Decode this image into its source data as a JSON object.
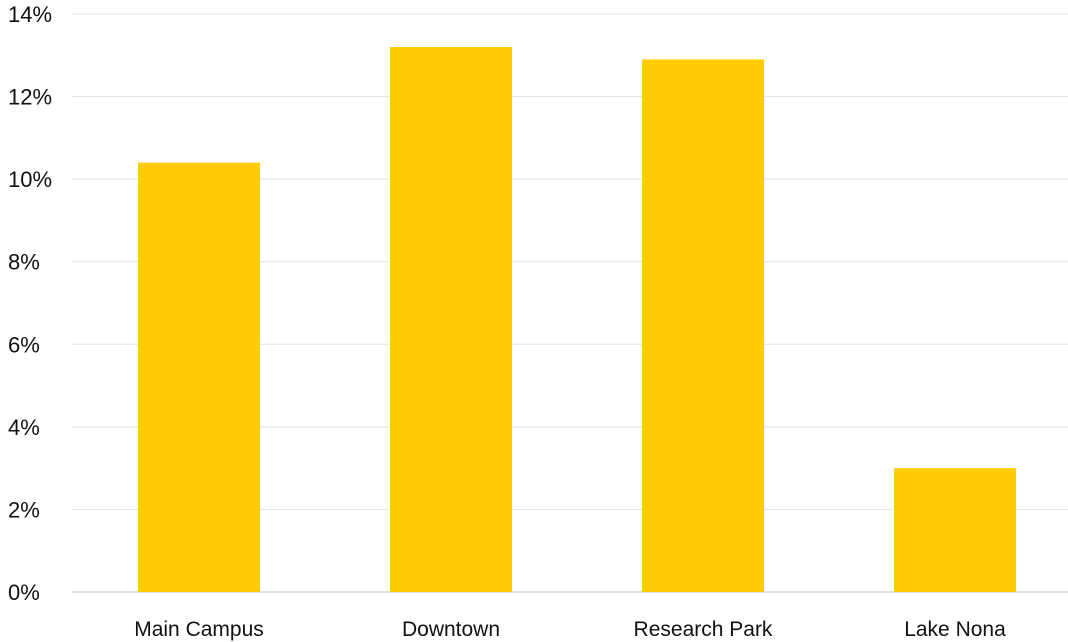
{
  "chart_data": {
    "type": "bar",
    "title": "",
    "xlabel": "",
    "ylabel": "",
    "categories": [
      "Main Campus",
      "Downtown",
      "Research Park",
      "Lake Nona"
    ],
    "values": [
      10.4,
      13.2,
      12.9,
      3.0
    ],
    "ylim": [
      0,
      14
    ],
    "yticks": [
      0,
      2,
      4,
      6,
      8,
      10,
      12,
      14
    ],
    "ytick_labels": [
      "0%",
      "2%",
      "4%",
      "6%",
      "8%",
      "10%",
      "12%",
      "14%"
    ],
    "grid": true,
    "legend": "none",
    "colors": {
      "bar": "#FFCC05"
    }
  }
}
